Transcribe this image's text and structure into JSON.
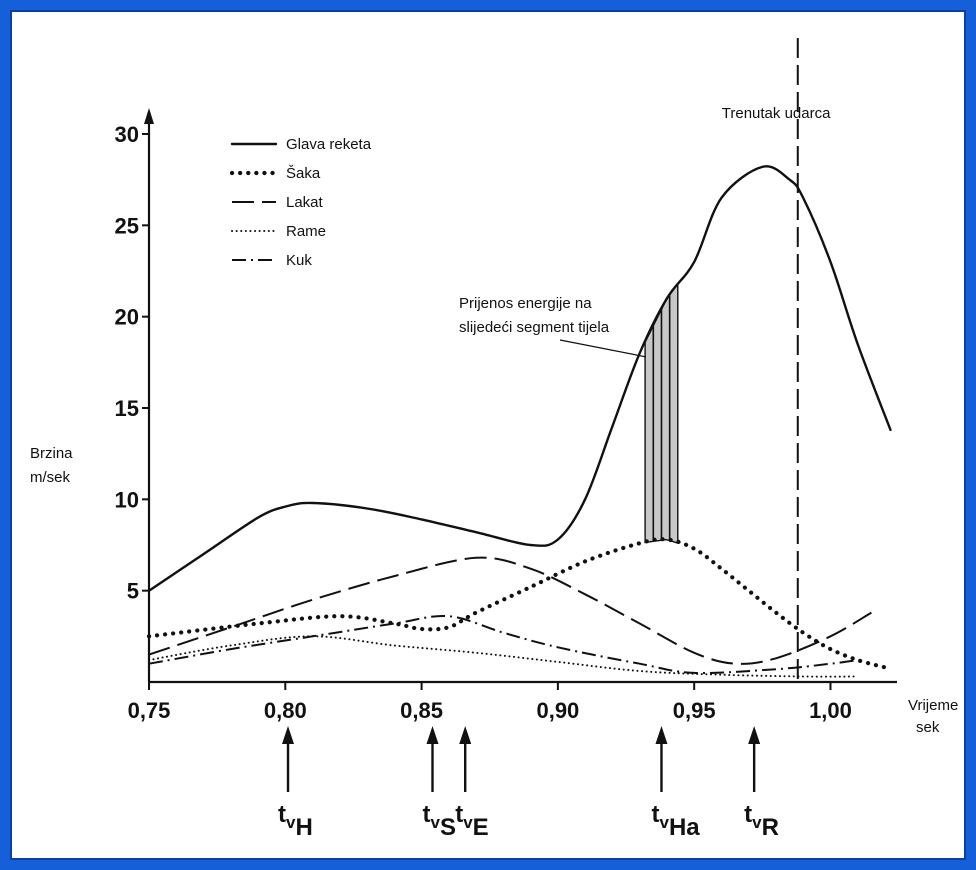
{
  "chart_data": {
    "type": "line",
    "title": "",
    "xlabel": [
      "Vrijeme",
      "sek"
    ],
    "ylabel": [
      "Brzina",
      "m/sek"
    ],
    "xlim": [
      0.75,
      1.02
    ],
    "ylim": [
      0,
      30
    ],
    "x_ticks": [
      0.75,
      0.8,
      0.85,
      0.9,
      0.95,
      1.0
    ],
    "x_tick_labels": [
      "0,75",
      "0,80",
      "0,85",
      "0,90",
      "0,95",
      "1,00"
    ],
    "y_ticks": [
      5,
      10,
      15,
      20,
      25,
      30
    ],
    "y_tick_labels": [
      "5",
      "10",
      "15",
      "20",
      "25",
      "30"
    ],
    "grid": false,
    "legend_position": "top-left",
    "series": [
      {
        "name": "Glava reketa",
        "style": "solid",
        "x": [
          0.75,
          0.77,
          0.79,
          0.8,
          0.81,
          0.83,
          0.85,
          0.87,
          0.89,
          0.9,
          0.91,
          0.92,
          0.93,
          0.94,
          0.95,
          0.96,
          0.975,
          0.985,
          0.99,
          1.0,
          1.01,
          1.022
        ],
        "y": [
          5.0,
          7.0,
          9.0,
          9.6,
          9.8,
          9.5,
          8.9,
          8.2,
          7.5,
          7.8,
          10.0,
          14.0,
          18.0,
          21.0,
          23.0,
          26.5,
          28.2,
          27.5,
          26.5,
          23.0,
          18.5,
          13.8
        ]
      },
      {
        "name": "Šaka",
        "style": "dotted-heavy",
        "x": [
          0.75,
          0.79,
          0.82,
          0.84,
          0.85,
          0.86,
          0.87,
          0.89,
          0.91,
          0.93,
          0.94,
          0.95,
          0.96,
          0.97,
          0.98,
          0.99,
          1.0,
          1.01,
          1.02
        ],
        "y": [
          2.5,
          3.2,
          3.6,
          3.2,
          2.9,
          3.0,
          3.8,
          5.2,
          6.6,
          7.6,
          7.8,
          7.3,
          6.2,
          5.0,
          3.8,
          2.7,
          1.8,
          1.2,
          0.8
        ]
      },
      {
        "name": "Lakat",
        "style": "dashed",
        "x": [
          0.75,
          0.78,
          0.81,
          0.84,
          0.87,
          0.89,
          0.91,
          0.93,
          0.95,
          0.965,
          0.98,
          1.0,
          1.015
        ],
        "y": [
          1.5,
          3.0,
          4.5,
          5.8,
          6.8,
          6.2,
          4.8,
          3.2,
          1.6,
          1.0,
          1.3,
          2.5,
          3.8
        ]
      },
      {
        "name": "Rame",
        "style": "dotted",
        "x": [
          0.75,
          0.78,
          0.81,
          0.84,
          0.87,
          0.9,
          0.93,
          0.96,
          0.99,
          1.01
        ],
        "y": [
          1.2,
          2.0,
          2.5,
          2.0,
          1.6,
          1.1,
          0.6,
          0.4,
          0.3,
          0.3
        ]
      },
      {
        "name": "Kuk",
        "style": "dash-dot",
        "x": [
          0.75,
          0.78,
          0.81,
          0.84,
          0.86,
          0.88,
          0.9,
          0.93,
          0.95,
          0.98,
          1.0,
          1.01
        ],
        "y": [
          1.0,
          1.8,
          2.5,
          3.2,
          3.6,
          2.7,
          1.9,
          1.0,
          0.5,
          0.7,
          1.0,
          1.2
        ]
      }
    ],
    "vertical_line": {
      "x": 0.988,
      "style": "dashed",
      "label": "Trenutak udarca"
    },
    "shaded_region": {
      "x_from": 0.932,
      "x_to": 0.944,
      "label": [
        "Prijenos energije na",
        "slijedeći segment tijela"
      ],
      "color": "#c8c8c8"
    },
    "time_markers": [
      {
        "x": 0.801,
        "main": "t",
        "sub1": "v",
        "sub2": "H"
      },
      {
        "x": 0.854,
        "main": "t",
        "sub1": "v",
        "sub2": "S"
      },
      {
        "x": 0.866,
        "main": "t",
        "sub1": "v",
        "sub2": "E"
      },
      {
        "x": 0.938,
        "main": "t",
        "sub1": "v",
        "sub2": "Ha"
      },
      {
        "x": 0.972,
        "main": "t",
        "sub1": "v",
        "sub2": "R"
      }
    ]
  },
  "colors": {
    "background": "#1560D8",
    "line": "#111111",
    "shade": "#c8c8c8"
  }
}
